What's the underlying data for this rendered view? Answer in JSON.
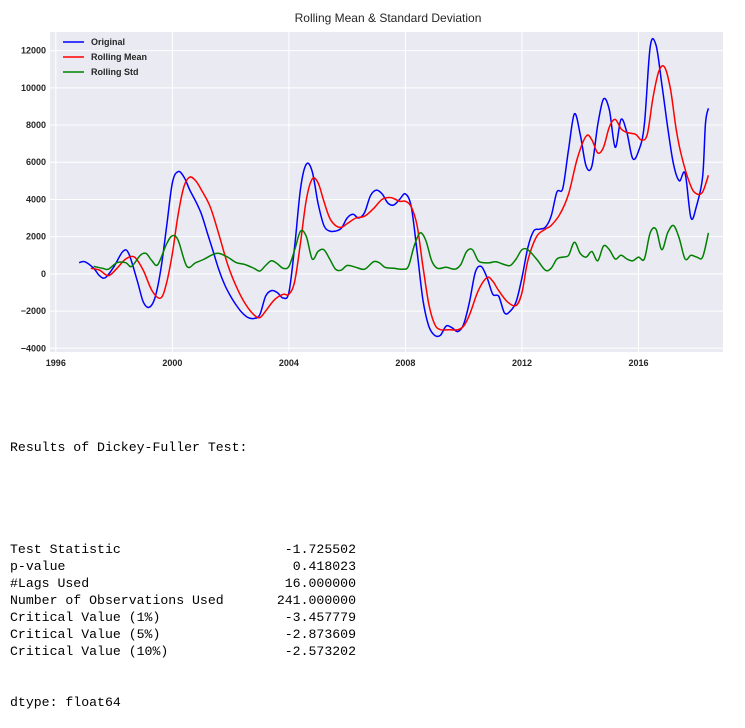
{
  "chart_data": {
    "type": "line",
    "title": "Rolling Mean & Standard Deviation",
    "xlim": [
      1995.8,
      2018.9
    ],
    "ylim": [
      -4200,
      13000
    ],
    "x_ticks": [
      1996,
      2000,
      2004,
      2008,
      2012,
      2016
    ],
    "y_ticks": [
      -4000,
      -2000,
      0,
      2000,
      4000,
      6000,
      8000,
      10000,
      12000
    ],
    "x_tick_labels": [
      "1996",
      "2000",
      "2004",
      "2008",
      "2012",
      "2016"
    ],
    "y_tick_labels": [
      "−4000",
      "−2000",
      "0",
      "2000",
      "4000",
      "6000",
      "8000",
      "10000",
      "12000"
    ],
    "grid": true,
    "legend_position": "top-left",
    "series": [
      {
        "name": "Original",
        "color": "#0000ff",
        "points": [
          [
            1996.8,
            600
          ],
          [
            1997.0,
            650
          ],
          [
            1997.3,
            300
          ],
          [
            1997.5,
            -100
          ],
          [
            1997.7,
            -200
          ],
          [
            1998.0,
            400
          ],
          [
            1998.3,
            1200
          ],
          [
            1998.5,
            1100
          ],
          [
            1998.8,
            -400
          ],
          [
            1999.0,
            -1500
          ],
          [
            1999.2,
            -1800
          ],
          [
            1999.4,
            -1300
          ],
          [
            1999.6,
            200
          ],
          [
            1999.8,
            2500
          ],
          [
            2000.0,
            4900
          ],
          [
            2000.2,
            5500
          ],
          [
            2000.4,
            5200
          ],
          [
            2000.6,
            4500
          ],
          [
            2000.8,
            3900
          ],
          [
            2001.0,
            3200
          ],
          [
            2001.2,
            2200
          ],
          [
            2001.4,
            1200
          ],
          [
            2001.6,
            200
          ],
          [
            2001.8,
            -600
          ],
          [
            2002.0,
            -1200
          ],
          [
            2002.2,
            -1700
          ],
          [
            2002.4,
            -2100
          ],
          [
            2002.6,
            -2350
          ],
          [
            2002.8,
            -2400
          ],
          [
            2003.0,
            -2200
          ],
          [
            2003.2,
            -1200
          ],
          [
            2003.4,
            -900
          ],
          [
            2003.6,
            -1000
          ],
          [
            2003.8,
            -1300
          ],
          [
            2004.0,
            -1000
          ],
          [
            2004.2,
            1500
          ],
          [
            2004.4,
            4600
          ],
          [
            2004.6,
            5900
          ],
          [
            2004.8,
            5500
          ],
          [
            2005.0,
            3800
          ],
          [
            2005.2,
            2600
          ],
          [
            2005.4,
            2300
          ],
          [
            2005.6,
            2300
          ],
          [
            2005.8,
            2450
          ],
          [
            2006.0,
            3000
          ],
          [
            2006.2,
            3200
          ],
          [
            2006.4,
            3000
          ],
          [
            2006.6,
            3300
          ],
          [
            2006.8,
            4200
          ],
          [
            2007.0,
            4500
          ],
          [
            2007.2,
            4300
          ],
          [
            2007.4,
            3800
          ],
          [
            2007.6,
            3700
          ],
          [
            2007.8,
            4000
          ],
          [
            2008.0,
            4300
          ],
          [
            2008.2,
            3600
          ],
          [
            2008.4,
            1200
          ],
          [
            2008.6,
            -1400
          ],
          [
            2008.8,
            -2800
          ],
          [
            2009.0,
            -3300
          ],
          [
            2009.2,
            -3300
          ],
          [
            2009.4,
            -2800
          ],
          [
            2009.6,
            -2900
          ],
          [
            2009.8,
            -3100
          ],
          [
            2010.0,
            -2700
          ],
          [
            2010.2,
            -1500
          ],
          [
            2010.4,
            100
          ],
          [
            2010.6,
            400
          ],
          [
            2010.8,
            -200
          ],
          [
            2011.0,
            -1100
          ],
          [
            2011.2,
            -1200
          ],
          [
            2011.4,
            -2100
          ],
          [
            2011.6,
            -2000
          ],
          [
            2011.8,
            -1500
          ],
          [
            2012.0,
            -200
          ],
          [
            2012.2,
            1400
          ],
          [
            2012.4,
            2300
          ],
          [
            2012.6,
            2400
          ],
          [
            2012.8,
            2500
          ],
          [
            2013.0,
            3100
          ],
          [
            2013.2,
            4400
          ],
          [
            2013.4,
            4600
          ],
          [
            2013.6,
            6700
          ],
          [
            2013.8,
            8600
          ],
          [
            2014.0,
            7500
          ],
          [
            2014.2,
            5800
          ],
          [
            2014.4,
            5800
          ],
          [
            2014.6,
            8000
          ],
          [
            2014.8,
            9400
          ],
          [
            2015.0,
            8800
          ],
          [
            2015.2,
            6800
          ],
          [
            2015.4,
            8300
          ],
          [
            2015.6,
            7600
          ],
          [
            2015.8,
            6200
          ],
          [
            2016.0,
            6600
          ],
          [
            2016.2,
            8000
          ],
          [
            2016.4,
            12200
          ],
          [
            2016.6,
            12300
          ],
          [
            2016.8,
            10200
          ],
          [
            2017.0,
            7900
          ],
          [
            2017.2,
            5900
          ],
          [
            2017.4,
            5000
          ],
          [
            2017.6,
            5400
          ],
          [
            2017.8,
            3000
          ],
          [
            2018.0,
            3700
          ],
          [
            2018.2,
            5200
          ],
          [
            2018.3,
            8100
          ],
          [
            2018.4,
            8900
          ]
        ]
      },
      {
        "name": "Rolling Mean",
        "color": "#ff0000",
        "points": [
          [
            1997.2,
            300
          ],
          [
            1997.5,
            200
          ],
          [
            1997.8,
            -100
          ],
          [
            1998.1,
            300
          ],
          [
            1998.4,
            800
          ],
          [
            1998.7,
            900
          ],
          [
            1999.0,
            200
          ],
          [
            1999.3,
            -900
          ],
          [
            1999.6,
            -1300
          ],
          [
            1999.8,
            -500
          ],
          [
            2000.0,
            1100
          ],
          [
            2000.2,
            3200
          ],
          [
            2000.4,
            4700
          ],
          [
            2000.6,
            5200
          ],
          [
            2000.8,
            5000
          ],
          [
            2001.0,
            4500
          ],
          [
            2001.3,
            3600
          ],
          [
            2001.6,
            2100
          ],
          [
            2001.9,
            500
          ],
          [
            2002.2,
            -700
          ],
          [
            2002.5,
            -1600
          ],
          [
            2002.8,
            -2200
          ],
          [
            2003.0,
            -2350
          ],
          [
            2003.2,
            -2000
          ],
          [
            2003.5,
            -1400
          ],
          [
            2003.8,
            -1100
          ],
          [
            2004.0,
            -1100
          ],
          [
            2004.2,
            -400
          ],
          [
            2004.4,
            1700
          ],
          [
            2004.6,
            4000
          ],
          [
            2004.8,
            5100
          ],
          [
            2005.0,
            4900
          ],
          [
            2005.2,
            3900
          ],
          [
            2005.4,
            3000
          ],
          [
            2005.6,
            2600
          ],
          [
            2005.8,
            2500
          ],
          [
            2006.0,
            2700
          ],
          [
            2006.3,
            3000
          ],
          [
            2006.6,
            3100
          ],
          [
            2006.9,
            3500
          ],
          [
            2007.2,
            4000
          ],
          [
            2007.5,
            4100
          ],
          [
            2007.8,
            3900
          ],
          [
            2008.0,
            3900
          ],
          [
            2008.2,
            3600
          ],
          [
            2008.4,
            2600
          ],
          [
            2008.6,
            400
          ],
          [
            2008.8,
            -1600
          ],
          [
            2009.0,
            -2700
          ],
          [
            2009.2,
            -3000
          ],
          [
            2009.5,
            -3000
          ],
          [
            2009.8,
            -3000
          ],
          [
            2010.0,
            -2800
          ],
          [
            2010.2,
            -2200
          ],
          [
            2010.5,
            -900
          ],
          [
            2010.8,
            -200
          ],
          [
            2011.0,
            -400
          ],
          [
            2011.2,
            -900
          ],
          [
            2011.5,
            -1500
          ],
          [
            2011.8,
            -1700
          ],
          [
            2012.0,
            -1000
          ],
          [
            2012.2,
            700
          ],
          [
            2012.5,
            2000
          ],
          [
            2012.8,
            2400
          ],
          [
            2013.0,
            2600
          ],
          [
            2013.3,
            3200
          ],
          [
            2013.6,
            4300
          ],
          [
            2013.9,
            6200
          ],
          [
            2014.2,
            7400
          ],
          [
            2014.4,
            7200
          ],
          [
            2014.6,
            6500
          ],
          [
            2014.8,
            6800
          ],
          [
            2015.0,
            7900
          ],
          [
            2015.2,
            8300
          ],
          [
            2015.4,
            7800
          ],
          [
            2015.6,
            7600
          ],
          [
            2015.9,
            7500
          ],
          [
            2016.1,
            7200
          ],
          [
            2016.3,
            7500
          ],
          [
            2016.5,
            9500
          ],
          [
            2016.7,
            10900
          ],
          [
            2016.9,
            11100
          ],
          [
            2017.1,
            9900
          ],
          [
            2017.3,
            7700
          ],
          [
            2017.5,
            6200
          ],
          [
            2017.8,
            4700
          ],
          [
            2018.0,
            4300
          ],
          [
            2018.2,
            4400
          ],
          [
            2018.4,
            5300
          ]
        ]
      },
      {
        "name": "Rolling Std",
        "color": "#008000",
        "points": [
          [
            1997.3,
            400
          ],
          [
            1997.6,
            300
          ],
          [
            1997.8,
            250
          ],
          [
            1998.1,
            600
          ],
          [
            1998.4,
            600
          ],
          [
            1998.6,
            400
          ],
          [
            1998.9,
            1000
          ],
          [
            1999.1,
            1100
          ],
          [
            1999.3,
            700
          ],
          [
            1999.5,
            500
          ],
          [
            1999.8,
            1600
          ],
          [
            2000.0,
            2050
          ],
          [
            2000.2,
            1800
          ],
          [
            2000.5,
            400
          ],
          [
            2000.8,
            600
          ],
          [
            2001.1,
            800
          ],
          [
            2001.4,
            1050
          ],
          [
            2001.6,
            1100
          ],
          [
            2001.9,
            900
          ],
          [
            2002.2,
            600
          ],
          [
            2002.5,
            500
          ],
          [
            2002.8,
            300
          ],
          [
            2003.0,
            150
          ],
          [
            2003.2,
            450
          ],
          [
            2003.4,
            700
          ],
          [
            2003.6,
            550
          ],
          [
            2003.8,
            300
          ],
          [
            2004.0,
            400
          ],
          [
            2004.2,
            1300
          ],
          [
            2004.4,
            2300
          ],
          [
            2004.6,
            2000
          ],
          [
            2004.8,
            800
          ],
          [
            2005.0,
            1200
          ],
          [
            2005.2,
            1300
          ],
          [
            2005.4,
            800
          ],
          [
            2005.6,
            250
          ],
          [
            2005.8,
            200
          ],
          [
            2006.0,
            450
          ],
          [
            2006.3,
            350
          ],
          [
            2006.6,
            250
          ],
          [
            2006.9,
            650
          ],
          [
            2007.1,
            600
          ],
          [
            2007.3,
            350
          ],
          [
            2007.6,
            300
          ],
          [
            2007.9,
            250
          ],
          [
            2008.1,
            400
          ],
          [
            2008.3,
            1500
          ],
          [
            2008.5,
            2200
          ],
          [
            2008.7,
            1800
          ],
          [
            2008.9,
            700
          ],
          [
            2009.1,
            300
          ],
          [
            2009.4,
            350
          ],
          [
            2009.7,
            250
          ],
          [
            2009.9,
            500
          ],
          [
            2010.1,
            1200
          ],
          [
            2010.3,
            1300
          ],
          [
            2010.5,
            700
          ],
          [
            2010.7,
            600
          ],
          [
            2010.9,
            600
          ],
          [
            2011.1,
            650
          ],
          [
            2011.4,
            500
          ],
          [
            2011.6,
            450
          ],
          [
            2011.8,
            800
          ],
          [
            2012.0,
            1300
          ],
          [
            2012.2,
            1300
          ],
          [
            2012.5,
            800
          ],
          [
            2012.8,
            200
          ],
          [
            2013.0,
            300
          ],
          [
            2013.2,
            800
          ],
          [
            2013.4,
            900
          ],
          [
            2013.6,
            1000
          ],
          [
            2013.8,
            1700
          ],
          [
            2014.0,
            1100
          ],
          [
            2014.2,
            900
          ],
          [
            2014.4,
            1200
          ],
          [
            2014.6,
            700
          ],
          [
            2014.8,
            1500
          ],
          [
            2015.0,
            1300
          ],
          [
            2015.2,
            800
          ],
          [
            2015.4,
            1000
          ],
          [
            2015.6,
            800
          ],
          [
            2015.8,
            700
          ],
          [
            2016.0,
            900
          ],
          [
            2016.2,
            800
          ],
          [
            2016.4,
            2200
          ],
          [
            2016.6,
            2400
          ],
          [
            2016.8,
            1300
          ],
          [
            2017.0,
            2200
          ],
          [
            2017.2,
            2600
          ],
          [
            2017.4,
            1900
          ],
          [
            2017.6,
            800
          ],
          [
            2017.8,
            1000
          ],
          [
            2018.0,
            900
          ],
          [
            2018.2,
            900
          ],
          [
            2018.4,
            2200
          ]
        ]
      }
    ]
  },
  "results": {
    "heading": "Results of Dickey-Fuller Test:",
    "rows": [
      {
        "label": "Test Statistic",
        "value": "-1.725502"
      },
      {
        "label": "p-value",
        "value": "0.418023"
      },
      {
        "label": "#Lags Used",
        "value": "16.000000"
      },
      {
        "label": "Number of Observations Used",
        "value": "241.000000"
      },
      {
        "label": "Critical Value (1%)",
        "value": "-3.457779"
      },
      {
        "label": "Critical Value (5%)",
        "value": "-2.873609"
      },
      {
        "label": "Critical Value (10%)",
        "value": "-2.573202"
      }
    ],
    "dtype": "dtype: float64"
  }
}
